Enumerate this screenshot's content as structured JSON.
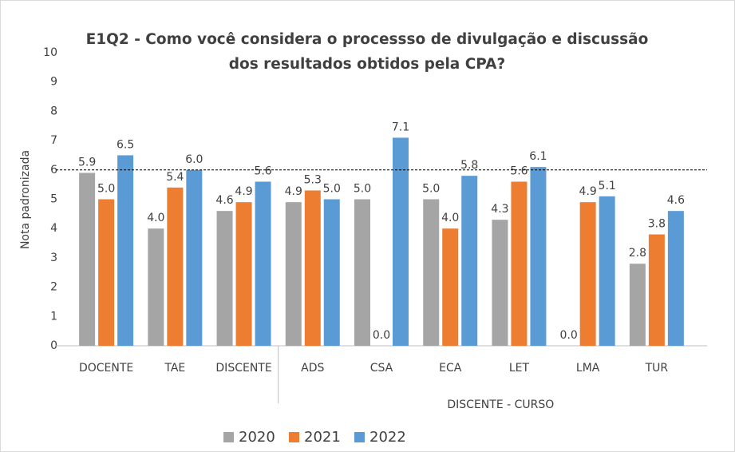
{
  "chart_data": {
    "type": "bar",
    "title": "E1Q2 - Como você considera o processso de divulgação e discussão dos resultados obtidos pela CPA?",
    "y_label": "Nota padronizada",
    "group_label": "DISCENTE - CURSO",
    "categories": [
      "DOCENTE",
      "TAE",
      "DISCENTE",
      "ADS",
      "CSA",
      "ECA",
      "LET",
      "LMA",
      "TUR"
    ],
    "series": [
      {
        "name": "2020",
        "color": "#a5a5a5",
        "values": [
          5.9,
          4.0,
          4.6,
          4.9,
          5.0,
          5.0,
          4.3,
          0.0,
          2.8
        ],
        "value_labels": [
          "5.9",
          "4.0",
          "4.6",
          "4.9",
          "5.0",
          "5.0",
          "4.3",
          "0.0",
          "2.8"
        ]
      },
      {
        "name": "2021",
        "color": "#ed7d31",
        "values": [
          5.0,
          5.4,
          4.9,
          5.3,
          0.0,
          4.0,
          5.6,
          4.9,
          3.8
        ],
        "value_labels": [
          "5.0",
          "5.4",
          "4.9",
          "5.3",
          "0.0",
          "4.0",
          "5.6",
          "4.9",
          "3.8"
        ]
      },
      {
        "name": "2022",
        "color": "#5b9bd5",
        "values": [
          6.5,
          6.0,
          5.6,
          5.0,
          7.1,
          5.8,
          6.1,
          5.1,
          4.6
        ],
        "value_labels": [
          "6.5",
          "6.0",
          "5.6",
          "5.0",
          "7.1",
          "5.8",
          "6.1",
          "5.1",
          "4.6"
        ]
      }
    ],
    "reference_line": 6,
    "ylim": [
      0,
      10
    ],
    "yticks": [
      0,
      1,
      2,
      3,
      4,
      5,
      6,
      7,
      8,
      9,
      10
    ],
    "legend": "bottom"
  }
}
